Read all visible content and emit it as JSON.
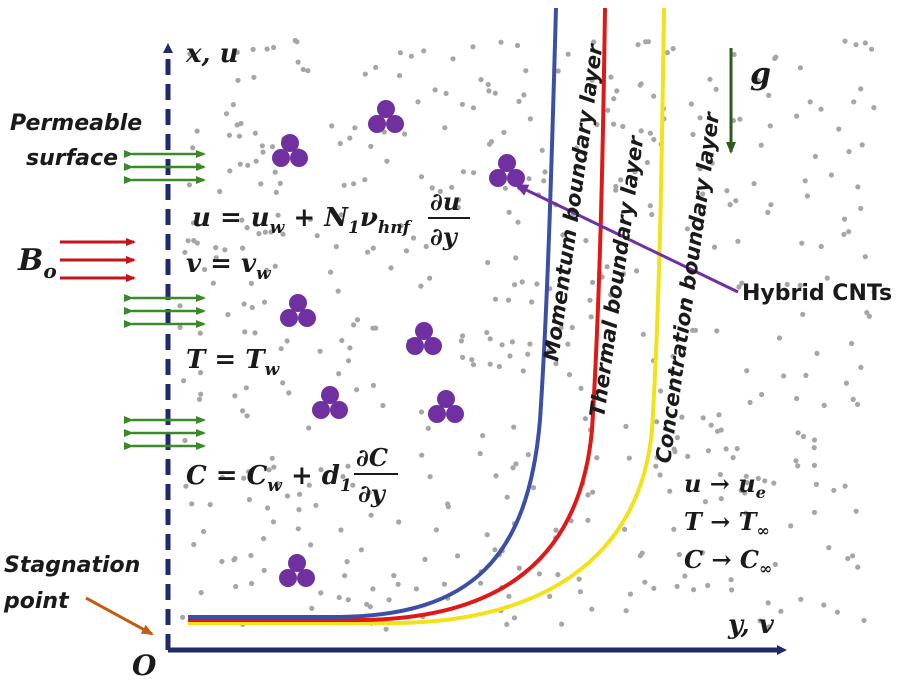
{
  "labels": {
    "permeable_line1": "Permeable",
    "permeable_line2": "surface",
    "stagnation_line1": "Stagnation",
    "stagnation_line2": "point",
    "hybrid_cnts": "Hybrid CNTs",
    "gravity": "g",
    "origin": "O",
    "axis_vertical": "x, u",
    "axis_horizontal": "y, v",
    "magnetic_field": "B",
    "magnetic_field_sub": "o"
  },
  "boundary_layers": {
    "momentum": "Momentum boundary layer",
    "thermal": "Thermal boundary layer",
    "concentration": "Concentration boundary layer"
  },
  "wall_conditions": {
    "u_lhs": "u = u",
    "u_lhs_sub": "w",
    "u_mid": " + N",
    "u_mid_sub": "1",
    "u_nu": "ν",
    "u_nu_sub": "hnf",
    "u_frac_num": "∂u",
    "u_frac_den": "∂y",
    "v_lhs": "v = v",
    "v_lhs_sub": "w",
    "T_lhs": "T = T",
    "T_lhs_sub": "w",
    "C_lhs": "C = C",
    "C_lhs_sub": "w",
    "C_mid": " + d",
    "C_mid_sub": "1",
    "C_frac_num": "∂C",
    "C_frac_den": "∂y"
  },
  "free_stream_conditions": {
    "u_main": "u → u",
    "u_sub": "e",
    "T_main": "T → T",
    "T_sub": "∞",
    "C_main": "C → C",
    "C_sub": "∞"
  },
  "colors": {
    "axis": "#1f2a6b",
    "momentum_curve": "#3c4fa6",
    "thermal_curve": "#e01818",
    "concentration_curve": "#f2e21a",
    "nanoparticle": "#7030a0",
    "dots": "#a6a6a6",
    "permeable_arrows": "#3a8a2a",
    "magnetic_arrows": "#c0161e",
    "gravity_arrow": "#2e5a20",
    "stagnation_arrow": "#c55a11",
    "hybrid_pointer": "#7030a0"
  }
}
